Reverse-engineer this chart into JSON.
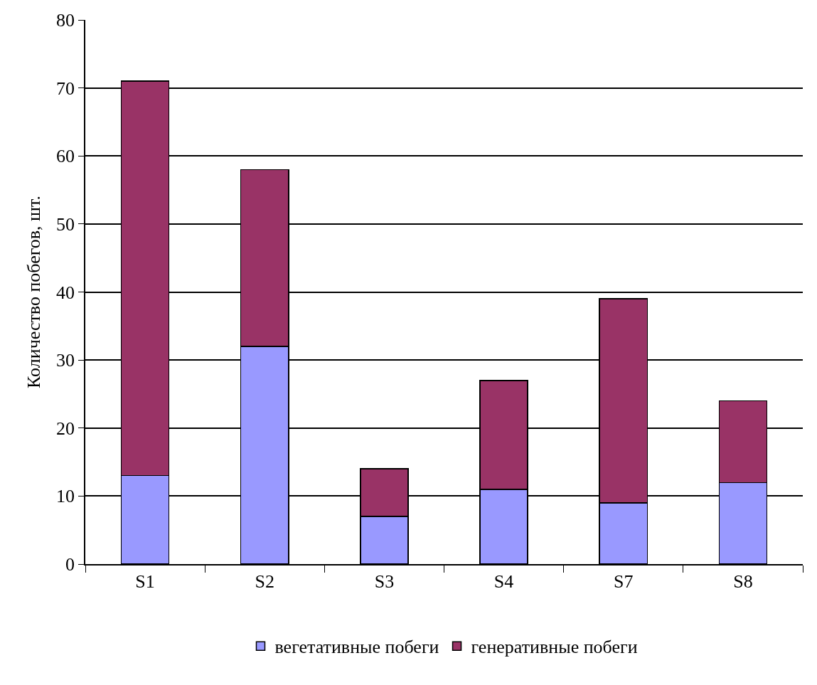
{
  "chart_data": {
    "type": "bar",
    "stacked": true,
    "ylabel": "Количество побегов, шт.",
    "categories": [
      "S1",
      "S2",
      "S3",
      "S4",
      "S7",
      "S8"
    ],
    "series": [
      {
        "name": "вегетативные побеги",
        "color": "#9999ff",
        "values": [
          13,
          32,
          7,
          11,
          9,
          12
        ]
      },
      {
        "name": "генеративные побеги",
        "color": "#993366",
        "values": [
          58,
          26,
          7,
          16,
          30,
          12
        ]
      }
    ],
    "ylim": [
      0,
      80
    ],
    "yticks": [
      0,
      10,
      20,
      30,
      40,
      50,
      60,
      70,
      80
    ],
    "grid": "y",
    "legend": "bottom"
  }
}
